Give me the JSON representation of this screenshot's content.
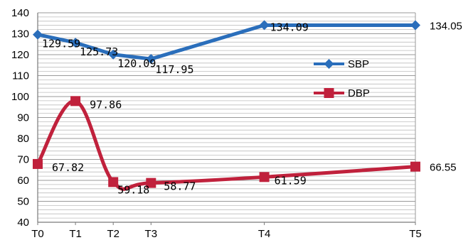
{
  "chart_data": {
    "type": "line",
    "title": "",
    "xlabel": "",
    "ylabel": "",
    "categories": [
      "T0",
      "T1",
      "T2",
      "T3",
      "T4",
      "T5"
    ],
    "x_numeric": [
      0,
      1,
      2,
      3,
      6,
      10
    ],
    "ylim": [
      40,
      140
    ],
    "yticks": [
      "140",
      "130",
      "120",
      "110",
      "100",
      "90",
      "80",
      "70",
      "60",
      "50",
      "40"
    ],
    "grid": "horizontal",
    "legend_position": "right",
    "series": [
      {
        "name": "SBP",
        "color": "#2a6ebb",
        "marker": "diamond",
        "smooth": false,
        "values": [
          129.59,
          125.73,
          120.09,
          117.95,
          134.09,
          134.05
        ],
        "labels": [
          "129.59",
          "125.73",
          "120.09",
          "117.95",
          "134.09",
          "134.05"
        ]
      },
      {
        "name": "DBP",
        "color": "#c0213c",
        "marker": "square",
        "smooth": true,
        "values": [
          67.82,
          97.86,
          59.18,
          58.77,
          61.59,
          66.55
        ],
        "labels": [
          "67.82",
          "97.86",
          "59.18",
          "58.77",
          "61.59",
          "66.55"
        ]
      }
    ]
  }
}
